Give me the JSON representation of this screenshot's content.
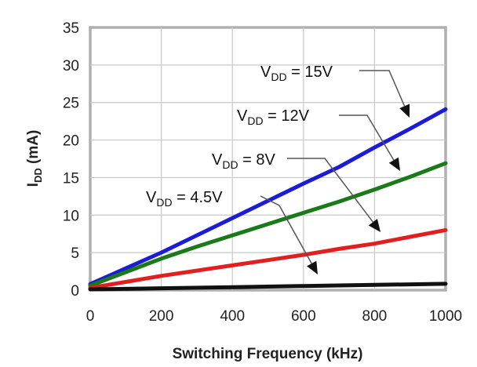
{
  "chart_data": {
    "type": "line",
    "xlabel": "Switching Frequency (kHz)",
    "ylabel": "I",
    "ylabel_sub": "DD",
    "ylabel_tail": " (mA)",
    "xlim": [
      0,
      1000
    ],
    "ylim": [
      0,
      35
    ],
    "x_ticks": [
      "0",
      "200",
      "400",
      "600",
      "800",
      "1000"
    ],
    "y_ticks": [
      "0",
      "5",
      "10",
      "15",
      "20",
      "25",
      "30",
      "35"
    ],
    "grid": true,
    "legend": "none",
    "series": [
      {
        "color": "#1c1cd6",
        "label_main": "V",
        "label_sub": "DD",
        "label_tail": " = 15V",
        "x": [
          0,
          100,
          200,
          300,
          400,
          500,
          600,
          700,
          800,
          900,
          1000
        ],
        "y": [
          0.8,
          2.9,
          5.0,
          7.3,
          9.6,
          11.9,
          14.2,
          16.4,
          19.0,
          21.5,
          24.1
        ]
      },
      {
        "color": "#1a7a1a",
        "label_main": "V",
        "label_sub": "DD",
        "label_tail": " = 12V",
        "x": [
          0,
          100,
          200,
          300,
          400,
          500,
          600,
          700,
          800,
          900,
          1000
        ],
        "y": [
          0.6,
          2.4,
          4.2,
          5.8,
          7.3,
          8.8,
          10.3,
          11.8,
          13.4,
          15.1,
          16.9
        ]
      },
      {
        "color": "#e02020",
        "label_main": "V",
        "label_sub": "DD",
        "label_tail": " = 8V",
        "x": [
          0,
          100,
          200,
          300,
          400,
          500,
          600,
          700,
          800,
          900,
          1000
        ],
        "y": [
          0.3,
          1.1,
          1.9,
          2.6,
          3.3,
          4.0,
          4.7,
          5.5,
          6.2,
          7.1,
          8.0
        ]
      },
      {
        "color": "#111111",
        "label_main": "V",
        "label_sub": "DD",
        "label_tail": " = 4.5V",
        "x": [
          0,
          200,
          400,
          600,
          800,
          1000
        ],
        "y": [
          0.1,
          0.25,
          0.4,
          0.55,
          0.7,
          0.85
        ]
      }
    ]
  }
}
